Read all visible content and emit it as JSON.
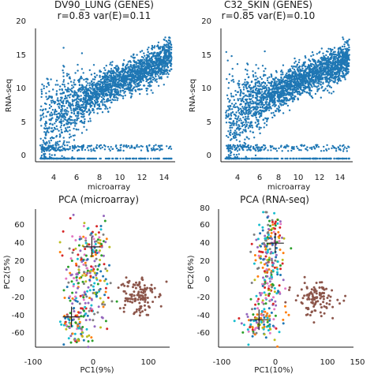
{
  "chart_data": [
    {
      "type": "scatter",
      "title": "DV90_LUNG (GENES)",
      "subtitle": "r=0.83 var(E)=0.11",
      "xlabel": "microarray",
      "ylabel": "RNA-seq",
      "xlim": [
        3.0,
        14.8
      ],
      "ylim": [
        -0.5,
        20.8
      ],
      "xticks": [
        "4",
        "6",
        "8",
        "10",
        "12",
        "14"
      ],
      "yticks": [
        "0",
        "5",
        "10",
        "15",
        "20"
      ],
      "point_color": "#1f77b4",
      "summary": {
        "n_points": 2600,
        "correlation": 0.83,
        "floor_value": 0,
        "floor_band": [
          1.2,
          2.2
        ],
        "x_range": [
          3.4,
          14.5
        ],
        "y_max": 19.5
      },
      "series": [
        {
          "x": [
            4.2,
            5.0,
            6.0,
            7.0,
            8.0,
            9.0,
            10.0,
            11.0,
            12.0,
            13.0,
            14.0,
            14.4
          ],
          "y": [
            5.5,
            7.2,
            8.4,
            9.4,
            10.4,
            11.3,
            12.2,
            13.1,
            13.9,
            14.8,
            15.8,
            16.6
          ]
        }
      ]
    },
    {
      "type": "scatter",
      "title": "C32_SKIN (GENES)",
      "subtitle": "r=0.85 var(E)=0.10",
      "xlabel": "microarray",
      "ylabel": "RNA-seq",
      "xlim": [
        3.0,
        14.8
      ],
      "ylim": [
        -0.5,
        20.8
      ],
      "xticks": [
        "4",
        "6",
        "8",
        "10",
        "12",
        "14"
      ],
      "yticks": [
        "0",
        "5",
        "10",
        "15",
        "20"
      ],
      "point_color": "#1f77b4",
      "summary": {
        "n_points": 2600,
        "correlation": 0.85,
        "floor_value": 0,
        "floor_band": [
          1.2,
          2.2
        ],
        "x_range": [
          3.4,
          14.5
        ],
        "y_max": 20.3
      },
      "series": [
        {
          "x": [
            4.2,
            5.0,
            6.0,
            7.0,
            8.0,
            9.0,
            10.0,
            11.0,
            12.0,
            13.0,
            14.0,
            14.4
          ],
          "y": [
            6.0,
            7.6,
            8.7,
            9.7,
            10.6,
            11.5,
            12.3,
            13.1,
            13.9,
            14.7,
            15.5,
            16.2
          ]
        }
      ]
    },
    {
      "type": "scatter",
      "title": "PCA (microarray)",
      "xlabel": "PC1(9%)",
      "ylabel": "PC2(5%)",
      "xlim": [
        -100,
        150
      ],
      "ylim": [
        -66,
        80
      ],
      "xticks": [
        "-100",
        "0",
        "100"
      ],
      "yticks": [
        "-60",
        "-40",
        "-20",
        "0",
        "20",
        "40",
        "60"
      ],
      "palette": [
        "#1f77b4",
        "#ff7f0e",
        "#2ca02c",
        "#d62728",
        "#9467bd",
        "#e377c2",
        "#7f7f7f",
        "#bcbd22",
        "#17becf"
      ],
      "clusters": [
        {
          "name": "",
          "center": [
            -5,
            0
          ],
          "spread": [
            22,
            30
          ],
          "count": 260
        },
        {
          "name": "",
          "center": [
            -28,
            -45
          ],
          "spread": [
            14,
            9
          ],
          "count": 60
        },
        {
          "name": "",
          "center": [
            10,
            45
          ],
          "spread": [
            10,
            14
          ],
          "count": 40
        },
        {
          "name": "",
          "center": [
            88,
            -10
          ],
          "spread": [
            17,
            11
          ],
          "count": 120,
          "color": "#8c564b"
        }
      ],
      "crosshairs": [
        {
          "x": 5,
          "y": 40
        },
        {
          "x": -33,
          "y": -34
        }
      ]
    },
    {
      "type": "scatter",
      "title": "PCA (RNA-seq)",
      "xlabel": "PC1(10%)",
      "ylabel": "PC2(6%)",
      "xlim": [
        -100,
        150
      ],
      "ylim": [
        -66,
        80
      ],
      "xticks": [
        "-100",
        "0",
        "100",
        "150"
      ],
      "yticks": [
        "-60",
        "-40",
        "-20",
        "0",
        "20",
        "40",
        "60",
        "80"
      ],
      "palette": [
        "#1f77b4",
        "#ff7f0e",
        "#2ca02c",
        "#d62728",
        "#9467bd",
        "#e377c2",
        "#7f7f7f",
        "#bcbd22",
        "#17becf"
      ],
      "clusters": [
        {
          "name": "",
          "center": [
            -8,
            20
          ],
          "spread": [
            14,
            25
          ],
          "count": 200
        },
        {
          "name": "",
          "center": [
            -25,
            -40
          ],
          "spread": [
            16,
            10
          ],
          "count": 100
        },
        {
          "name": "",
          "center": [
            0,
            55
          ],
          "spread": [
            10,
            11
          ],
          "count": 45
        },
        {
          "name": "",
          "center": [
            80,
            -15
          ],
          "spread": [
            20,
            9
          ],
          "count": 110,
          "color": "#8c564b"
        }
      ],
      "crosshairs": [
        {
          "x": 5,
          "y": 44
        },
        {
          "x": -25,
          "y": -37
        }
      ]
    }
  ]
}
